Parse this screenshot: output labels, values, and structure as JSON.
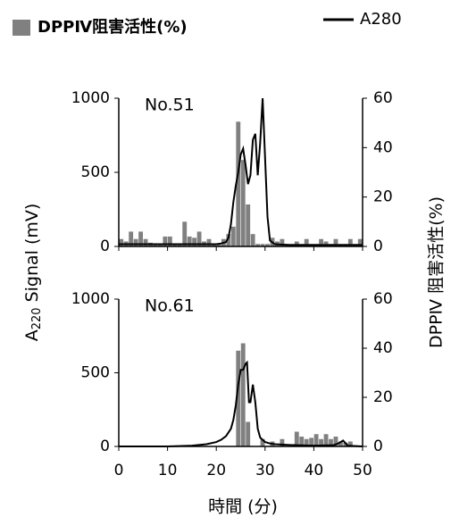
{
  "figure": {
    "legend": [
      {
        "name": "DPPⅣ阻害活性(%)",
        "color": "#808080",
        "kind": "box"
      },
      {
        "name": "A280",
        "color": "#000000",
        "kind": "line"
      }
    ],
    "x_label": "時間 (分)",
    "y_label_parts": [
      "A",
      "220",
      " Signal (mV)"
    ],
    "y2_label": "DPPⅣ 阻害活性(%)",
    "xlim": [
      0,
      50
    ],
    "xticks": [
      0,
      10,
      20,
      30,
      40,
      50
    ]
  },
  "chart_data": [
    {
      "type": "combo",
      "annotation": "No.51",
      "ylim": [
        0,
        1000
      ],
      "yticks": [
        0,
        500,
        1000
      ],
      "y2lim": [
        0,
        60
      ],
      "y2ticks": [
        0,
        20,
        40,
        60
      ],
      "bins": [
        0,
        1,
        2,
        3,
        4,
        5,
        6,
        7,
        8,
        9,
        10,
        11,
        12,
        13,
        14,
        15,
        16,
        17,
        18,
        19,
        20,
        21,
        22,
        23,
        24,
        25,
        26,
        27,
        28,
        29,
        30,
        31,
        32,
        33,
        34,
        35,
        36,
        37,
        38,
        39,
        40,
        41,
        42,
        43,
        44,
        45,
        46,
        47,
        48,
        49,
        50
      ],
      "bar_values": [
        3,
        2,
        6,
        3,
        6,
        3,
        1.5,
        1,
        1,
        4,
        4,
        1,
        1,
        10,
        4,
        3.5,
        6,
        2,
        3,
        1,
        1,
        3,
        5,
        8,
        50.5,
        35,
        17,
        5,
        1,
        1,
        1,
        3.5,
        2,
        3,
        1,
        1,
        2,
        1,
        3,
        1,
        1,
        3,
        2,
        1,
        3,
        1,
        1,
        3,
        1,
        3
      ],
      "line_x": [
        0,
        5,
        10,
        15,
        20,
        21,
        22,
        22.5,
        23,
        23.5,
        24,
        24.5,
        25,
        25.5,
        26,
        26.5,
        27,
        27.5,
        28,
        28.5,
        29,
        29.5,
        30,
        30.5,
        31,
        32,
        35,
        40,
        45,
        50
      ],
      "line_y": [
        15,
        15,
        15,
        15,
        15,
        20,
        30,
        60,
        150,
        300,
        410,
        500,
        620,
        660,
        550,
        420,
        480,
        720,
        760,
        480,
        700,
        1000,
        600,
        200,
        40,
        15,
        10,
        10,
        10,
        10
      ]
    },
    {
      "type": "combo",
      "annotation": "No.61",
      "ylim": [
        0,
        1000
      ],
      "yticks": [
        0,
        500,
        1000
      ],
      "y2lim": [
        0,
        60
      ],
      "y2ticks": [
        0,
        20,
        40,
        60
      ],
      "bins": [
        0,
        1,
        2,
        3,
        4,
        5,
        6,
        7,
        8,
        9,
        10,
        11,
        12,
        13,
        14,
        15,
        16,
        17,
        18,
        19,
        20,
        21,
        22,
        23,
        24,
        25,
        26,
        27,
        28,
        29,
        30,
        31,
        32,
        33,
        34,
        35,
        36,
        37,
        38,
        39,
        40,
        41,
        42,
        43,
        44,
        45,
        46,
        47,
        48,
        49,
        50
      ],
      "bar_values": [
        0,
        0,
        0,
        0,
        0,
        0,
        0,
        0,
        0,
        0,
        0,
        0,
        0,
        0,
        0,
        0,
        0,
        0,
        0,
        0,
        0,
        0,
        0,
        0,
        39,
        42,
        10,
        0,
        0,
        3,
        0,
        2,
        0,
        3,
        0,
        0,
        6,
        4,
        3,
        3.5,
        5,
        3,
        5,
        3,
        4,
        2,
        1.5,
        2,
        0,
        0
      ],
      "line_x": [
        0,
        5,
        10,
        15,
        18,
        20,
        21,
        22,
        23,
        23.5,
        24,
        24.5,
        25,
        25.5,
        26,
        26.3,
        26.7,
        27,
        27.5,
        28,
        28.5,
        29,
        30,
        31,
        32,
        35,
        40,
        44,
        45,
        46,
        47,
        50
      ],
      "line_y": [
        0,
        0,
        0,
        5,
        15,
        30,
        45,
        70,
        120,
        180,
        280,
        420,
        520,
        520,
        560,
        570,
        300,
        300,
        420,
        300,
        120,
        60,
        30,
        20,
        15,
        10,
        5,
        8,
        20,
        40,
        5,
        0
      ]
    }
  ]
}
